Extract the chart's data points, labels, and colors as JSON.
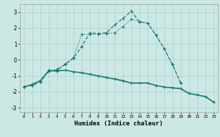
{
  "title": "",
  "xlabel": "Humidex (Indice chaleur)",
  "bg_color": "#cce8e5",
  "grid_color": "#aacccc",
  "line_color": "#1a7a6e",
  "x_values": [
    0,
    1,
    2,
    3,
    4,
    5,
    6,
    7,
    8,
    9,
    10,
    11,
    12,
    13,
    14,
    15,
    16,
    17,
    18,
    19,
    20,
    21,
    22,
    23
  ],
  "series1": [
    -1.7,
    -1.6,
    -1.4,
    -0.7,
    -0.65,
    -0.3,
    0.1,
    0.85,
    1.7,
    1.65,
    1.7,
    2.2,
    2.6,
    3.05,
    2.4,
    2.3,
    1.55,
    0.7,
    -0.3,
    -1.45,
    null,
    null,
    null,
    null
  ],
  "series2": [
    -1.7,
    -1.55,
    -1.3,
    -0.65,
    -0.6,
    -0.25,
    0.15,
    1.6,
    1.6,
    1.6,
    1.65,
    1.7,
    2.1,
    2.55,
    2.4,
    2.3,
    1.55,
    0.7,
    -0.3,
    -1.45,
    null,
    null,
    null,
    null
  ],
  "series3": [
    -1.7,
    -1.55,
    -1.3,
    -0.7,
    -0.7,
    -0.65,
    -0.75,
    -0.8,
    -0.9,
    -1.0,
    -1.1,
    -1.2,
    -1.3,
    -1.45,
    -1.45,
    -1.45,
    -1.6,
    -1.7,
    -1.75,
    -1.8,
    -2.1,
    -2.2,
    -2.3,
    -2.65
  ],
  "series4": [
    -1.7,
    -1.55,
    -1.3,
    -0.7,
    -0.7,
    -0.65,
    -0.75,
    -0.82,
    -0.92,
    -1.02,
    -1.12,
    -1.22,
    -1.33,
    -1.47,
    -1.47,
    -1.47,
    -1.62,
    -1.72,
    -1.77,
    -1.82,
    -2.12,
    -2.22,
    -2.32,
    -2.68
  ],
  "ylim": [
    -3.3,
    3.5
  ],
  "xlim": [
    -0.5,
    23.5
  ],
  "yticks": [
    -3,
    -2,
    -1,
    0,
    1,
    2,
    3
  ],
  "xticks": [
    0,
    1,
    2,
    3,
    4,
    5,
    6,
    7,
    8,
    9,
    10,
    11,
    12,
    13,
    14,
    15,
    16,
    17,
    18,
    19,
    20,
    21,
    22,
    23
  ]
}
